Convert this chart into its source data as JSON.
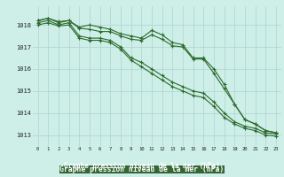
{
  "hours": [
    0,
    1,
    2,
    3,
    4,
    5,
    6,
    7,
    8,
    9,
    10,
    11,
    12,
    13,
    14,
    15,
    16,
    17,
    18,
    19,
    20,
    21,
    22,
    23
  ],
  "line1": [
    1018.2,
    1018.3,
    1018.15,
    1018.2,
    1017.9,
    1018.0,
    1017.9,
    1017.8,
    1017.6,
    1017.5,
    1017.4,
    1017.75,
    1017.55,
    1017.2,
    1017.1,
    1016.5,
    1016.5,
    1016.0,
    1015.3,
    1014.4,
    1013.7,
    1013.5,
    1013.2,
    1013.1
  ],
  "line2": [
    1018.2,
    1018.3,
    1018.1,
    1018.2,
    1017.85,
    1017.8,
    1017.7,
    1017.7,
    1017.5,
    1017.35,
    1017.3,
    1017.55,
    1017.35,
    1017.05,
    1017.0,
    1016.45,
    1016.45,
    1015.8,
    1015.1,
    1014.4,
    1013.7,
    1013.5,
    1013.2,
    1013.1
  ],
  "line3": [
    1018.1,
    1018.2,
    1018.0,
    1018.1,
    1017.5,
    1017.4,
    1017.4,
    1017.3,
    1017.0,
    1016.5,
    1016.3,
    1016.0,
    1015.7,
    1015.4,
    1015.2,
    1015.0,
    1014.9,
    1014.5,
    1014.0,
    1013.6,
    1013.4,
    1013.3,
    1013.1,
    1013.05
  ],
  "line4": [
    1018.0,
    1018.1,
    1017.95,
    1018.0,
    1017.4,
    1017.3,
    1017.3,
    1017.2,
    1016.9,
    1016.4,
    1016.1,
    1015.8,
    1015.5,
    1015.2,
    1015.0,
    1014.8,
    1014.7,
    1014.3,
    1013.8,
    1013.5,
    1013.3,
    1013.2,
    1013.0,
    1012.95
  ],
  "line_color": "#2d6a2d",
  "bg_color": "#ceeee8",
  "grid_color": "#aed4ce",
  "xlabel": "Graphe pression niveau de la mer (hPa)",
  "xlabel_bg": "#336633",
  "xlabel_color": "#ffffff",
  "yticks": [
    1013,
    1014,
    1015,
    1016,
    1017,
    1018
  ],
  "ylim": [
    1012.5,
    1018.85
  ],
  "xlim": [
    -0.5,
    23.5
  ]
}
